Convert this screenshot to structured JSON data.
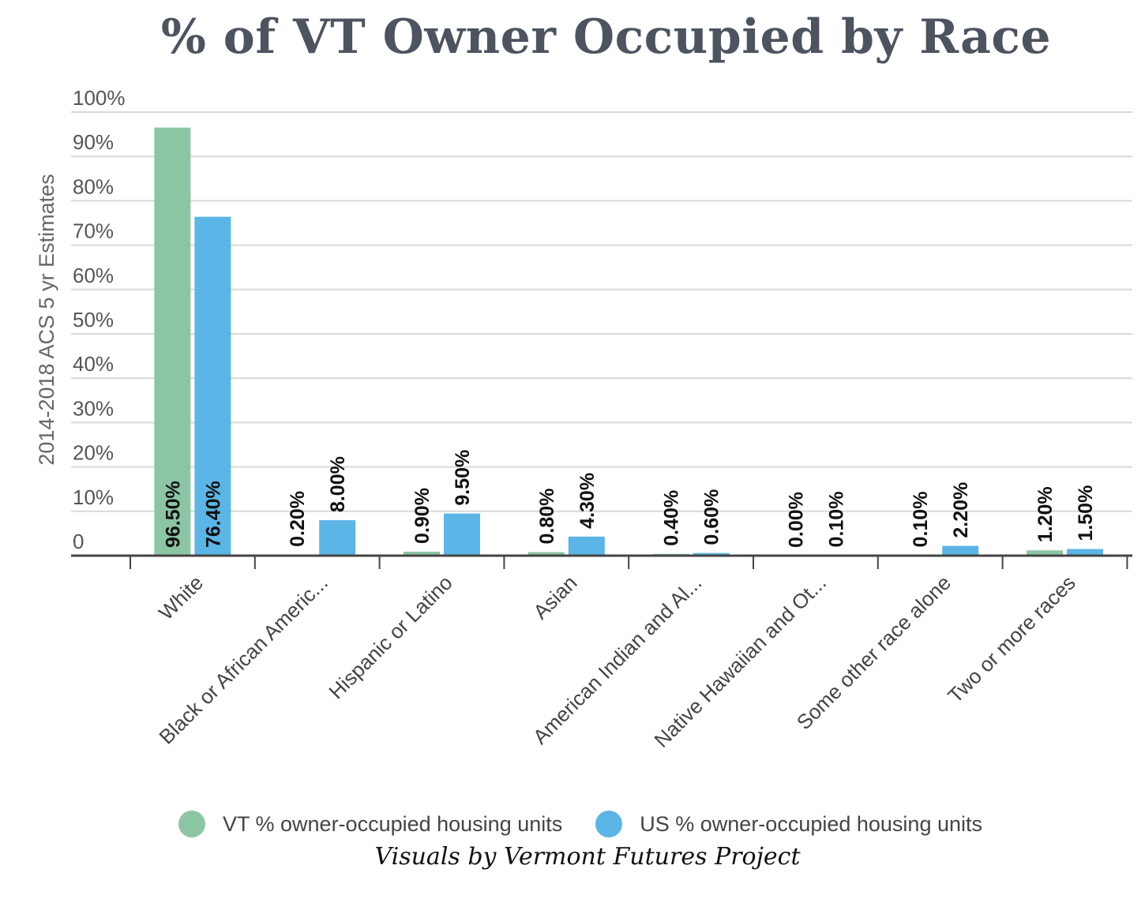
{
  "chart_data": {
    "type": "bar",
    "title": "% of VT Owner Occupied by Race",
    "ylabel": "2014-2018 ACS 5 yr Estimates",
    "xlabel": "",
    "ylim": [
      0,
      100
    ],
    "yticks": [
      {
        "value": 0,
        "label": "0"
      },
      {
        "value": 10,
        "label": "10%"
      },
      {
        "value": 20,
        "label": "20%"
      },
      {
        "value": 30,
        "label": "30%"
      },
      {
        "value": 40,
        "label": "40%"
      },
      {
        "value": 50,
        "label": "50%"
      },
      {
        "value": 60,
        "label": "60%"
      },
      {
        "value": 70,
        "label": "70%"
      },
      {
        "value": 80,
        "label": "80%"
      },
      {
        "value": 90,
        "label": "90%"
      },
      {
        "value": 100,
        "label": "100%"
      }
    ],
    "categories": [
      "White",
      "Black or African Americ...",
      "Hispanic or Latino",
      "Asian",
      "American Indian and Al...",
      "Native Hawaiian and Ot...",
      "Some other race alone",
      "Two or more races"
    ],
    "series": [
      {
        "name": "VT % owner-occupied housing units",
        "color": "#8cc5a4",
        "values": [
          96.5,
          0.2,
          0.9,
          0.8,
          0.4,
          0.0,
          0.1,
          1.2
        ],
        "labels": [
          "96.50%",
          "0.20%",
          "0.90%",
          "0.80%",
          "0.40%",
          "0.00%",
          "0.10%",
          "1.20%"
        ]
      },
      {
        "name": "US % owner-occupied housing units",
        "color": "#5bb5e6",
        "values": [
          76.4,
          8.0,
          9.5,
          4.3,
          0.6,
          0.1,
          2.2,
          1.5
        ],
        "labels": [
          "76.40%",
          "8.00%",
          "9.50%",
          "4.30%",
          "0.60%",
          "0.10%",
          "2.20%",
          "1.50%"
        ]
      }
    ],
    "grid": true,
    "legend": "bottom"
  },
  "credit": "Visuals by Vermont Futures Project"
}
